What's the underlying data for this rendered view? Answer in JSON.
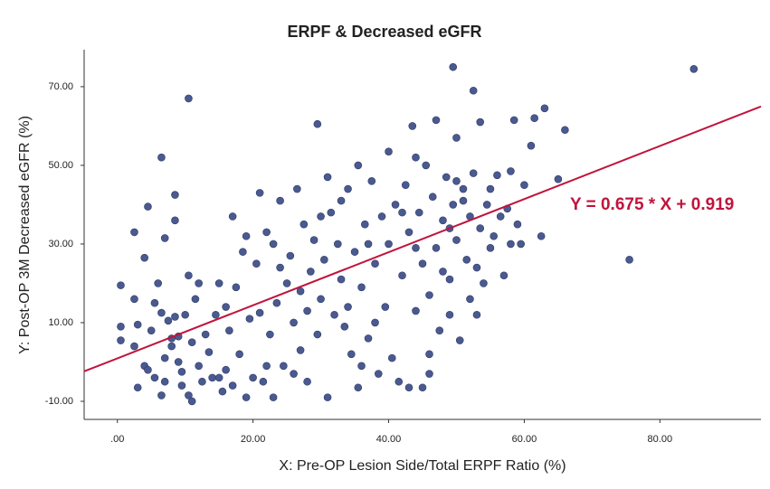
{
  "chart_data": {
    "type": "scatter",
    "title": "ERPF & Decreased eGFR",
    "x_label": "X: Pre-OP Lesion Side/Total ERPF Ratio (%)",
    "y_label": "Y: Post-OP 3M Decreased eGFR (%)",
    "annotation": "Y = 0.675 * X + 0.919",
    "fit": {
      "slope": 0.675,
      "intercept": 0.919,
      "color": "#c0143c"
    },
    "color": "#4a5a90",
    "xlim": [
      -4.9,
      94.9
    ],
    "ylim": [
      -14.6,
      79.4
    ],
    "xticks": [
      {
        "value": 0,
        "label": ".00"
      },
      {
        "value": 20,
        "label": "20.00"
      },
      {
        "value": 40,
        "label": "40.00"
      },
      {
        "value": 60,
        "label": "60.00"
      },
      {
        "value": 80,
        "label": "80.00"
      }
    ],
    "yticks": [
      {
        "value": -10,
        "label": "-10.00"
      },
      {
        "value": 10,
        "label": "10.00"
      },
      {
        "value": 30,
        "label": "30.00"
      },
      {
        "value": 50,
        "label": "50.00"
      },
      {
        "value": 70,
        "label": "70.00"
      }
    ],
    "x": [
      85,
      75.5,
      49.5,
      10.5,
      52.5,
      29.5,
      0.5,
      0.5,
      0.5,
      2.5,
      4,
      4.5,
      6.5,
      8.5,
      8.5,
      7,
      63,
      66,
      61,
      58.5,
      61.5,
      65,
      62.5,
      60,
      58,
      3,
      2.5,
      2.5,
      3,
      4,
      4.5,
      5,
      5.5,
      5.5,
      6,
      6.5,
      6.5,
      7,
      7,
      7.5,
      8,
      8,
      8.5,
      9,
      9,
      9.5,
      10,
      10.5,
      10.5,
      11,
      11,
      11.5,
      12,
      12,
      12.5,
      13,
      14,
      14.5,
      15,
      15.5,
      16,
      16.5,
      17,
      17,
      17.5,
      18,
      18.5,
      19,
      19,
      19.5,
      20,
      9.5,
      13.5,
      15,
      16,
      20.5,
      21,
      21,
      21.5,
      22,
      22.5,
      23,
      23.5,
      24,
      24.5,
      25,
      25.5,
      26,
      26.5,
      27,
      27.5,
      28,
      28.5,
      29,
      29.5,
      30,
      30.5,
      31,
      31,
      31.5,
      32,
      32.5,
      33,
      33.5,
      34,
      34.5,
      35,
      35.5,
      35.5,
      36,
      36.5,
      37,
      37.5,
      38,
      38.5,
      39,
      39.5,
      40,
      40,
      40.5,
      41,
      41.5,
      42,
      22,
      24,
      26,
      28,
      30,
      33,
      36,
      38,
      23,
      27,
      34,
      37,
      42.5,
      43,
      43,
      43.5,
      44,
      44.5,
      45,
      45,
      45.5,
      46,
      46.5,
      47,
      47,
      47.5,
      48,
      48.5,
      49,
      49,
      49.5,
      50,
      50,
      50.5,
      51,
      51.5,
      52,
      52,
      52.5,
      53,
      53.5,
      53.5,
      54,
      54.5,
      55,
      55.5,
      56,
      56.5,
      57,
      57.5,
      58,
      59,
      59.5,
      44,
      46,
      48,
      50,
      42,
      44,
      46,
      49,
      51,
      53,
      55
    ],
    "values": [
      74.5,
      26,
      75,
      67,
      69,
      60.5,
      19.5,
      9,
      5.5,
      33,
      26.5,
      39.5,
      52,
      42.5,
      36,
      31.5,
      64.5,
      59,
      55,
      61.5,
      62,
      46.5,
      32,
      45,
      48.5,
      -6.5,
      4,
      16,
      9.5,
      -1,
      -2,
      8,
      -4,
      15,
      20,
      12.5,
      -8.5,
      -5,
      1,
      10.5,
      4,
      6,
      11.5,
      0,
      6.5,
      -2.5,
      12,
      22,
      -8.5,
      -10,
      5,
      16,
      -1,
      20,
      -5,
      7,
      -4,
      12,
      20,
      -7.5,
      -2,
      8,
      37,
      -6,
      19,
      2,
      28,
      32,
      -9,
      11,
      -4,
      -6,
      2.5,
      -4,
      14,
      25,
      43,
      12.5,
      -5,
      33,
      7,
      -9,
      15,
      41,
      -1,
      20,
      27,
      10,
      44,
      3,
      35,
      -5,
      23,
      31,
      7,
      16,
      26,
      -9,
      47,
      38,
      12,
      30,
      21,
      9,
      44,
      2,
      28,
      -6.5,
      50,
      19,
      35,
      6,
      46,
      25,
      -3,
      37,
      14,
      53.5,
      30,
      1,
      40,
      -5,
      22,
      -1,
      24,
      -3,
      13,
      37,
      41,
      -1,
      10,
      30,
      18,
      14,
      30,
      45,
      -6.5,
      33,
      60,
      13,
      38,
      -6.5,
      25,
      50,
      17,
      42,
      61.5,
      29,
      8,
      36,
      47,
      21,
      12,
      40,
      57,
      31,
      5.5,
      44,
      26,
      37,
      16,
      48,
      24,
      61,
      34,
      20,
      40,
      29,
      32,
      47.5,
      37,
      22,
      39,
      30,
      35,
      30,
      29,
      2,
      23,
      46,
      38,
      52,
      -3,
      34,
      41,
      12,
      44
    ]
  }
}
